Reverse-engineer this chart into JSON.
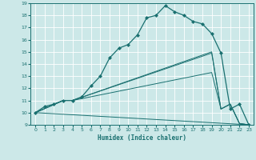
{
  "title": "",
  "xlabel": "Humidex (Indice chaleur)",
  "ylabel": "",
  "xlim": [
    -0.5,
    23.5
  ],
  "ylim": [
    9,
    19
  ],
  "xticks": [
    0,
    1,
    2,
    3,
    4,
    5,
    6,
    7,
    8,
    9,
    10,
    11,
    12,
    13,
    14,
    15,
    16,
    17,
    18,
    19,
    20,
    21,
    22,
    23
  ],
  "yticks": [
    9,
    10,
    11,
    12,
    13,
    14,
    15,
    16,
    17,
    18,
    19
  ],
  "background_color": "#cce8e8",
  "grid_color": "#ffffff",
  "line_color": "#1a7070",
  "line1_x": [
    0,
    1,
    2,
    3,
    4,
    5,
    6,
    7,
    8,
    9,
    10,
    11,
    12,
    13,
    14,
    15,
    16,
    17,
    18,
    19,
    20,
    21,
    22,
    23
  ],
  "line1_y": [
    10.0,
    10.5,
    10.7,
    11.0,
    11.0,
    11.3,
    12.2,
    13.0,
    14.5,
    15.3,
    15.6,
    16.4,
    17.8,
    18.0,
    18.8,
    18.3,
    18.0,
    17.5,
    17.3,
    16.5,
    14.9,
    10.3,
    10.7,
    9.0
  ],
  "line2_x": [
    0,
    3,
    4,
    23
  ],
  "line2_y": [
    10.0,
    11.0,
    10.5,
    9.0
  ],
  "line3_x": [
    0,
    3,
    4,
    19,
    20,
    21,
    22,
    23
  ],
  "line3_y": [
    10.0,
    11.0,
    11.0,
    13.3,
    10.3,
    10.7,
    9.1,
    9.0
  ],
  "line4_x": [
    0,
    3,
    4,
    19,
    20,
    21,
    22,
    23
  ],
  "line4_y": [
    10.0,
    11.0,
    11.0,
    14.9,
    10.3,
    10.7,
    9.1,
    9.0
  ],
  "line5_x": [
    0,
    3,
    4,
    19,
    20,
    21,
    22,
    23
  ],
  "line5_y": [
    10.0,
    11.0,
    11.0,
    15.0,
    10.3,
    10.7,
    9.1,
    9.0
  ]
}
